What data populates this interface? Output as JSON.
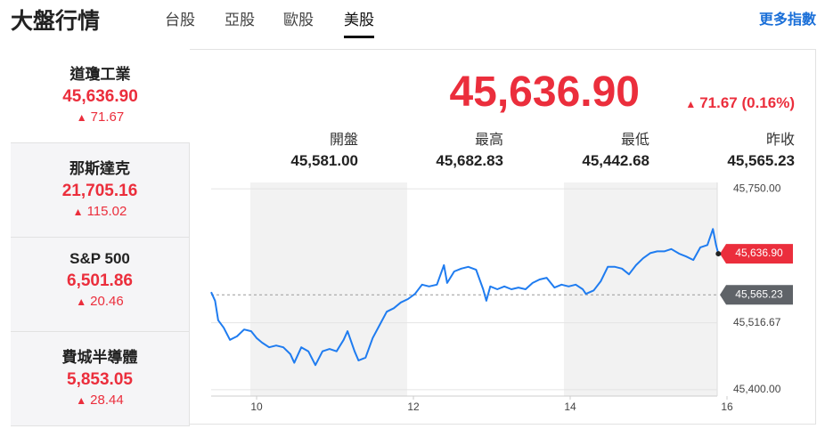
{
  "header": {
    "title": "大盤行情",
    "tabs": [
      "台股",
      "亞股",
      "歐股",
      "美股"
    ],
    "active_tab": 3,
    "more": "更多指數"
  },
  "indices": [
    {
      "name": "道瓊工業",
      "value": "45,636.90",
      "change": "71.67"
    },
    {
      "name": "那斯達克",
      "value": "21,705.16",
      "change": "115.02"
    },
    {
      "name": "S&P 500",
      "value": "6,501.86",
      "change": "20.46"
    },
    {
      "name": "費城半導體",
      "value": "5,853.05",
      "change": "28.44"
    }
  ],
  "quote": {
    "price": "45,636.90",
    "change": "71.67 (0.16%)",
    "stats": [
      {
        "label": "開盤",
        "value": "45,581.00"
      },
      {
        "label": "最高",
        "value": "45,682.83"
      },
      {
        "label": "最低",
        "value": "45,442.68"
      },
      {
        "label": "昨收",
        "value": "45,565.23"
      }
    ]
  },
  "chart": {
    "type": "line",
    "color": "#1f7cf0",
    "x": [
      9.42,
      9.47,
      9.51,
      9.58,
      9.66,
      9.75,
      9.84,
      9.93,
      10.0,
      10.07,
      10.16,
      10.25,
      10.34,
      10.43,
      10.48,
      10.57,
      10.66,
      10.75,
      10.84,
      10.93,
      11.02,
      11.11,
      11.16,
      11.25,
      11.3,
      11.39,
      11.48,
      11.57,
      11.66,
      11.75,
      11.84,
      11.93,
      12.02,
      12.11,
      12.2,
      12.3,
      12.39,
      12.43,
      12.52,
      12.61,
      12.7,
      12.8,
      12.89,
      12.93,
      12.98,
      13.07,
      13.16,
      13.25,
      13.34,
      13.43,
      13.52,
      13.61,
      13.7,
      13.8,
      13.89,
      13.98,
      14.07,
      14.16,
      14.2,
      14.3,
      14.39,
      14.48,
      14.57,
      14.66,
      14.75,
      14.84,
      14.93,
      15.02,
      15.11,
      15.2,
      15.29,
      15.39,
      15.48,
      15.57,
      15.66,
      15.75,
      15.82,
      15.86,
      15.89
    ],
    "values": [
      45570,
      45555,
      45521,
      45508,
      45487,
      45493,
      45505,
      45502,
      45490,
      45482,
      45474,
      45477,
      45474,
      45462,
      45447,
      45474,
      45467,
      45443,
      45467,
      45471,
      45467,
      45487,
      45502,
      45467,
      45451,
      45456,
      45490,
      45513,
      45536,
      45542,
      45552,
      45558,
      45567,
      45583,
      45580,
      45583,
      45617,
      45586,
      45606,
      45611,
      45614,
      45609,
      45575,
      45555,
      45580,
      45575,
      45580,
      45575,
      45578,
      45575,
      45586,
      45592,
      45595,
      45578,
      45583,
      45580,
      45583,
      45575,
      45567,
      45573,
      45589,
      45614,
      45614,
      45611,
      45601,
      45617,
      45629,
      45638,
      45641,
      45641,
      45645,
      45637,
      45632,
      45626,
      45648,
      45652,
      45680,
      45652,
      45636.9
    ],
    "xlim": [
      9.42,
      16
    ],
    "ylim": [
      45389,
      45761
    ],
    "xticks": [
      10,
      12,
      14,
      16
    ],
    "yticks": [
      {
        "value": 45750,
        "label": "45,750.00"
      },
      {
        "value": 45516.67,
        "label": "45,516.67"
      },
      {
        "value": 45400,
        "label": "45,400.00"
      }
    ],
    "grid": true,
    "last_tag": {
      "value": 45636.9,
      "label": "45,636.90"
    },
    "prev_close_tag": {
      "value": 45565.23,
      "label": "45,565.23"
    }
  }
}
